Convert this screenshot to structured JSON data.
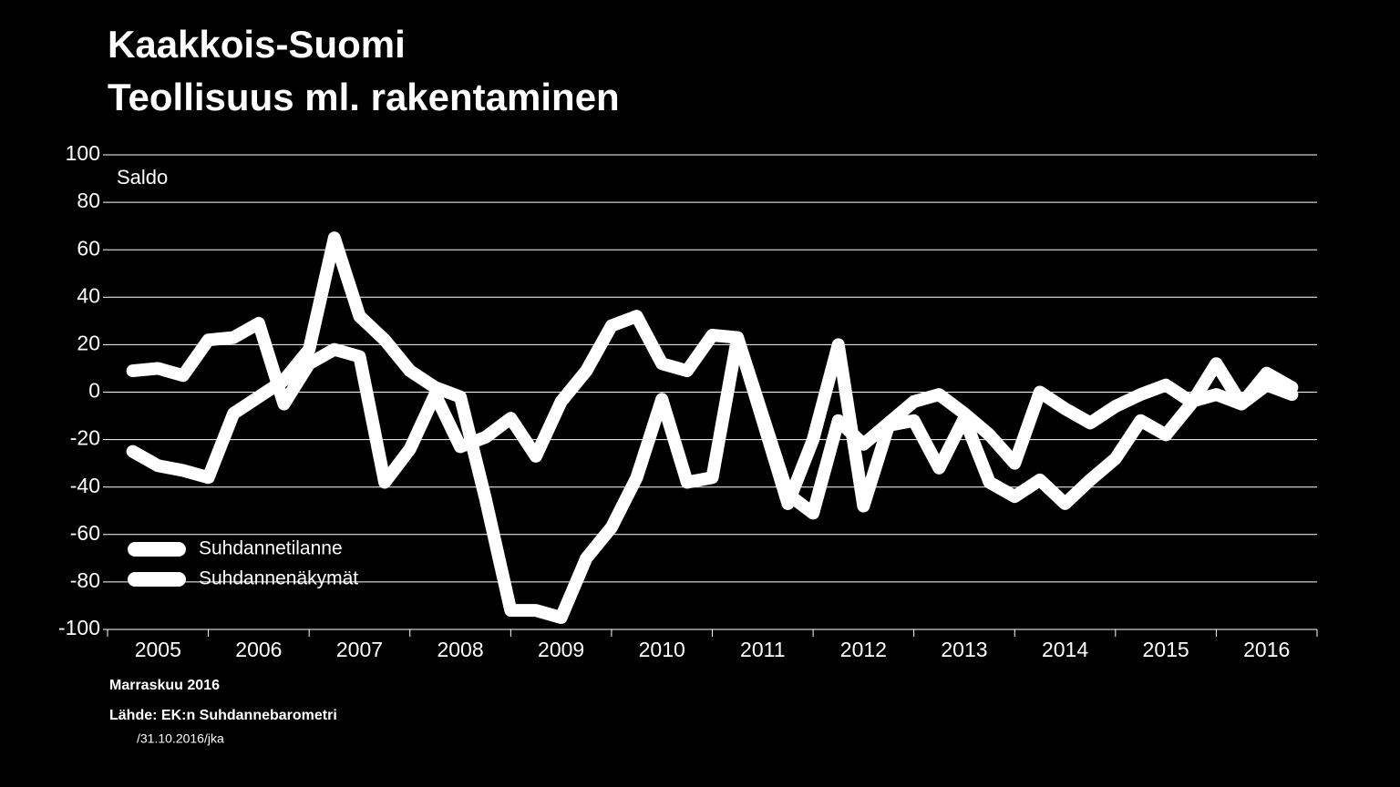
{
  "chart_data": {
    "type": "line",
    "title": "Kaakkois-Suomi",
    "subtitle": "Teollisuus ml. rakentaminen",
    "y_label": "Saldo",
    "years": [
      "2005",
      "2006",
      "2007",
      "2008",
      "2009",
      "2010",
      "2011",
      "2012",
      "2013",
      "2014",
      "2015",
      "2016"
    ],
    "series": [
      {
        "name": "Suhdannetilanne",
        "color": "#ffffff",
        "values": [
          -25,
          -31,
          -33,
          -36,
          -9,
          -2,
          5,
          18,
          65,
          32,
          22,
          9,
          2,
          -2,
          -45,
          -92,
          -92,
          -95,
          -70,
          -57,
          -36,
          -3,
          -38,
          -36,
          23,
          -10,
          -43,
          -51,
          -12,
          -22,
          -13,
          -4,
          -1,
          -9,
          -18,
          -30,
          0,
          -7,
          -13,
          -6,
          -1,
          3,
          -4,
          -1,
          -5,
          3,
          -1
        ]
      },
      {
        "name": "Suhdannenäkymät",
        "color": "#ffffff",
        "values": [
          9,
          10,
          7,
          22,
          23,
          29,
          -5,
          12,
          18,
          15,
          -38,
          -24,
          -1,
          -23,
          -19,
          -11,
          -27,
          -4,
          9,
          28,
          32,
          12,
          9,
          24,
          23,
          -12,
          -47,
          -20,
          20,
          -48,
          -14,
          -12,
          -32,
          -11,
          -38,
          -44,
          -37,
          -47,
          -37,
          -28,
          -12,
          -18,
          -5,
          12,
          -5,
          8,
          2
        ]
      }
    ],
    "ylim": [
      -100,
      100
    ],
    "yticks": [
      -100,
      -80,
      -60,
      -40,
      -20,
      0,
      20,
      40,
      60,
      80,
      100
    ],
    "grid": true,
    "legend": "lower left",
    "notes": [
      "Marraskuu 2016",
      "Lähde: EK:n Suhdannebarometri",
      "/31.10.2016/jka"
    ]
  }
}
